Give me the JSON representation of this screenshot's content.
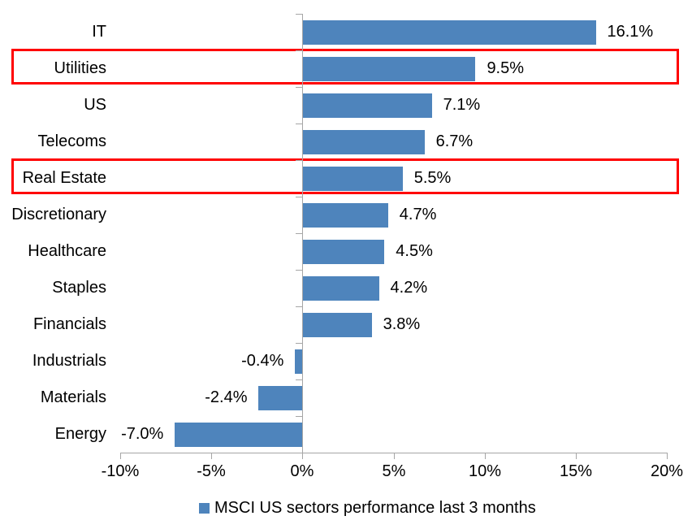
{
  "chart_data": {
    "type": "bar",
    "orientation": "horizontal",
    "categories": [
      "IT",
      "Utilities",
      "US",
      "Telecoms",
      "Real Estate",
      "Discretionary",
      "Healthcare",
      "Staples",
      "Financials",
      "Industrials",
      "Materials",
      "Energy"
    ],
    "values": [
      16.1,
      9.5,
      7.1,
      6.7,
      5.5,
      4.7,
      4.5,
      4.2,
      3.8,
      -0.4,
      -2.4,
      -7.0
    ],
    "value_labels": [
      "16.1%",
      "9.5%",
      "7.1%",
      "6.7%",
      "5.5%",
      "4.7%",
      "4.5%",
      "4.2%",
      "3.8%",
      "-0.4%",
      "-2.4%",
      "-7.0%"
    ],
    "highlighted_categories": [
      "Utilities",
      "Real Estate"
    ],
    "x_ticks": [
      -10,
      -5,
      0,
      5,
      10,
      15,
      20
    ],
    "x_tick_labels": [
      "-10%",
      "-5%",
      "0%",
      "5%",
      "10%",
      "15%",
      "20%"
    ],
    "xlim": [
      -10,
      20
    ],
    "legend": "MSCI US sectors performance last 3 months",
    "legend_position": "bottom",
    "grid": false,
    "bar_color": "#4E84BC",
    "highlight_color": "#FF0000",
    "axis_color": "#A6A6A6",
    "text_color": "#000000"
  }
}
